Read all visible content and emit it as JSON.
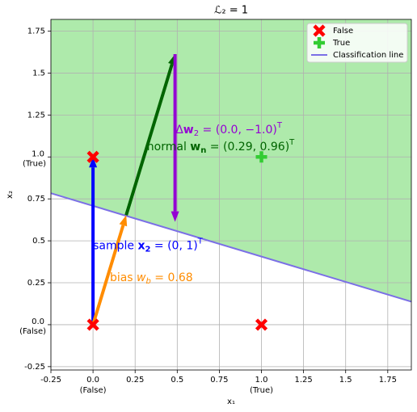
{
  "chart_data": {
    "type": "vector",
    "title": "ℒ₂ = 1",
    "xlabel": "x₁",
    "ylabel": "x₂",
    "xlim": [
      -0.25,
      1.89
    ],
    "ylim": [
      -0.27,
      1.82
    ],
    "xticks": [
      -0.25,
      {
        "value": 0,
        "label": "0.0",
        "sublabel": "(False)"
      },
      0.25,
      0.5,
      0.75,
      {
        "value": 1,
        "label": "1.0",
        "sublabel": "(True)"
      },
      1.25,
      1.5,
      1.75
    ],
    "yticks": [
      -0.25,
      {
        "value": 0,
        "label": "0.0",
        "sublabel": "(False)"
      },
      0.25,
      0.5,
      0.75,
      {
        "value": 1,
        "label": "1.0",
        "sublabel": "(True)"
      },
      1.25,
      1.5,
      1.75
    ],
    "grid": true,
    "legend": "upper right",
    "boundary": {
      "name": "Classification line",
      "normal": [
        0.29,
        0.96
      ],
      "bias": 0.68,
      "color": "#7b6fe6",
      "region_color": "#aeeaab"
    },
    "series": [
      {
        "name": "False",
        "color": "#ff0000",
        "marker": "x",
        "x": [
          0,
          1,
          0
        ],
        "y": [
          0,
          0,
          1
        ]
      },
      {
        "name": "True",
        "color": "#33cc33",
        "marker": "plus",
        "x": [
          1
        ],
        "y": [
          1
        ]
      }
    ],
    "arrows": [
      {
        "start": [
          0,
          0
        ],
        "vector": [
          0,
          1
        ],
        "color": "#0000ff",
        "label": [
          {
            "text": "sample ",
            "style": "normal"
          },
          {
            "text": "x",
            "style": "bold"
          },
          {
            "text": "2",
            "style": "bold-sub"
          },
          {
            "text": " = (0, 1)",
            "style": "normal"
          },
          {
            "text": "T",
            "style": "sup"
          }
        ]
      },
      {
        "start": [
          0,
          0
        ],
        "vector": [
          0.197,
          0.653
        ],
        "color": "#ff8c00",
        "label": [
          {
            "text": "bias ",
            "style": "normal"
          },
          {
            "text": "w",
            "style": "italic"
          },
          {
            "text": "b",
            "style": "italic-sub"
          },
          {
            "text": " = 0.68",
            "style": "normal"
          }
        ]
      },
      {
        "start": [
          0.197,
          0.653
        ],
        "vector": [
          0.29,
          0.96
        ],
        "color": "#006400",
        "label": [
          {
            "text": "normal ",
            "style": "normal"
          },
          {
            "text": "w",
            "style": "bold"
          },
          {
            "text": "n",
            "style": "bold-sub"
          },
          {
            "text": " = (0.29, 0.96)",
            "style": "normal"
          },
          {
            "text": "T",
            "style": "sup"
          }
        ]
      },
      {
        "start": [
          0.487,
          1.613
        ],
        "vector": [
          0,
          -1.0
        ],
        "color": "#9400d3",
        "label": [
          {
            "text": "Δ",
            "style": "normal"
          },
          {
            "text": "w",
            "style": "bold"
          },
          {
            "text": "2",
            "style": "sub"
          },
          {
            "text": " = (0.0, −1.0)",
            "style": "normal"
          },
          {
            "text": "T",
            "style": "sup"
          }
        ]
      }
    ]
  }
}
